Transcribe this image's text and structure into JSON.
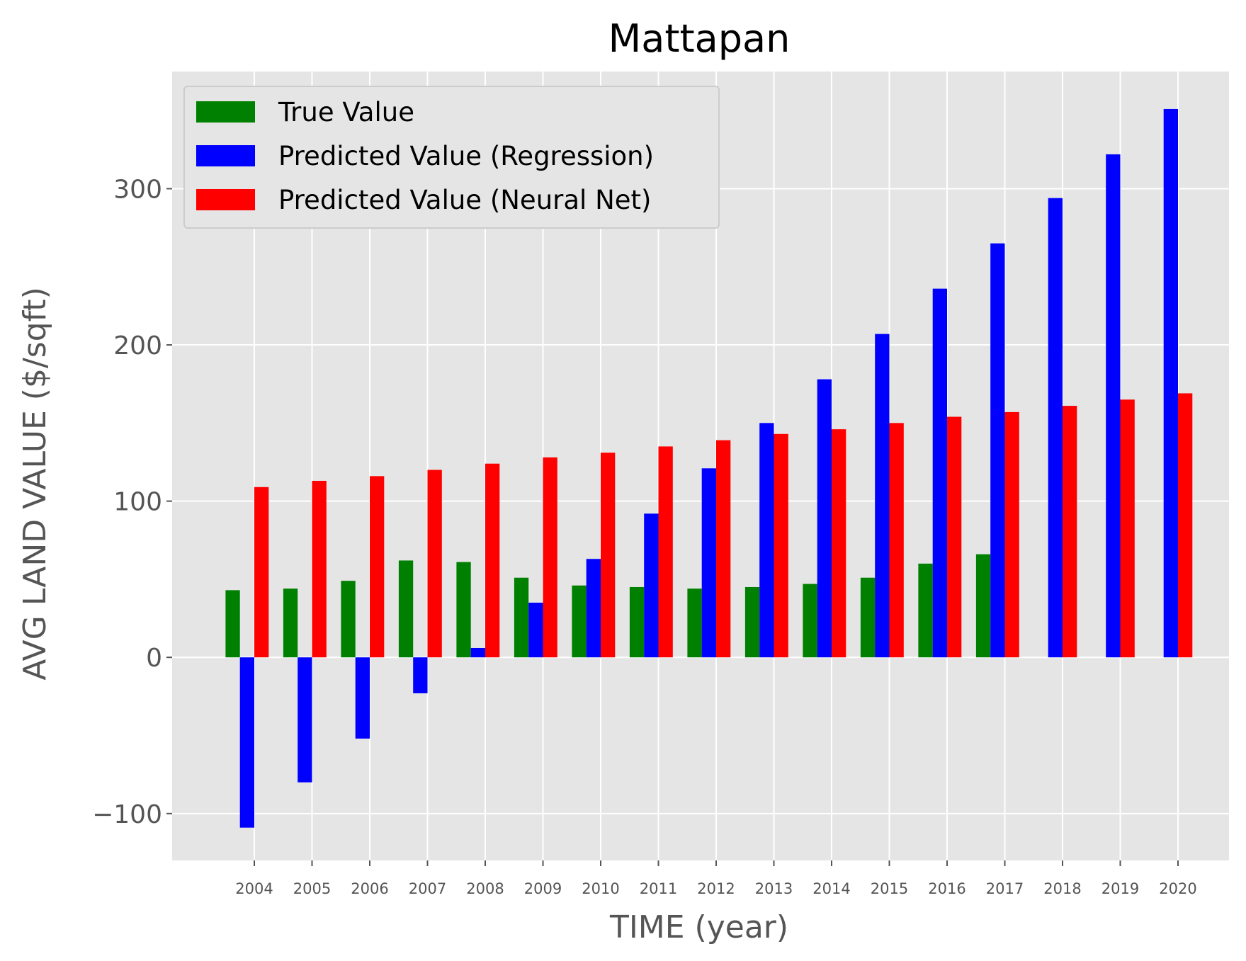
{
  "chart_data": {
    "type": "bar",
    "title": "Mattapan",
    "xlabel": "TIME (year)",
    "ylabel": "AVG LAND VALUE ($/sqft)",
    "ylim": [
      -130,
      375
    ],
    "yticks": [
      -100,
      0,
      100,
      200,
      300
    ],
    "ytick_labels": [
      "−100",
      "0",
      "100",
      "200",
      "300"
    ],
    "grid": true,
    "legend_position": "top-left",
    "categories": [
      "2004",
      "2005",
      "2006",
      "2007",
      "2008",
      "2009",
      "2010",
      "2011",
      "2012",
      "2013",
      "2014",
      "2015",
      "2016",
      "2017",
      "2018",
      "2019",
      "2020"
    ],
    "series": [
      {
        "name": "True Value",
        "color": "#008000",
        "values": [
          43,
          44,
          49,
          62,
          61,
          51,
          46,
          45,
          44,
          45,
          47,
          51,
          60,
          66,
          null,
          null,
          null
        ]
      },
      {
        "name": "Predicted Value (Regression)",
        "color": "#0000ff",
        "values": [
          -109,
          -80,
          -52,
          -23,
          6,
          35,
          63,
          92,
          121,
          150,
          178,
          207,
          236,
          265,
          294,
          322,
          351
        ]
      },
      {
        "name": "Predicted Value (Neural Net)",
        "color": "#ff0000",
        "values": [
          109,
          113,
          116,
          120,
          124,
          128,
          131,
          135,
          139,
          143,
          146,
          150,
          154,
          157,
          161,
          165,
          169
        ]
      }
    ]
  }
}
